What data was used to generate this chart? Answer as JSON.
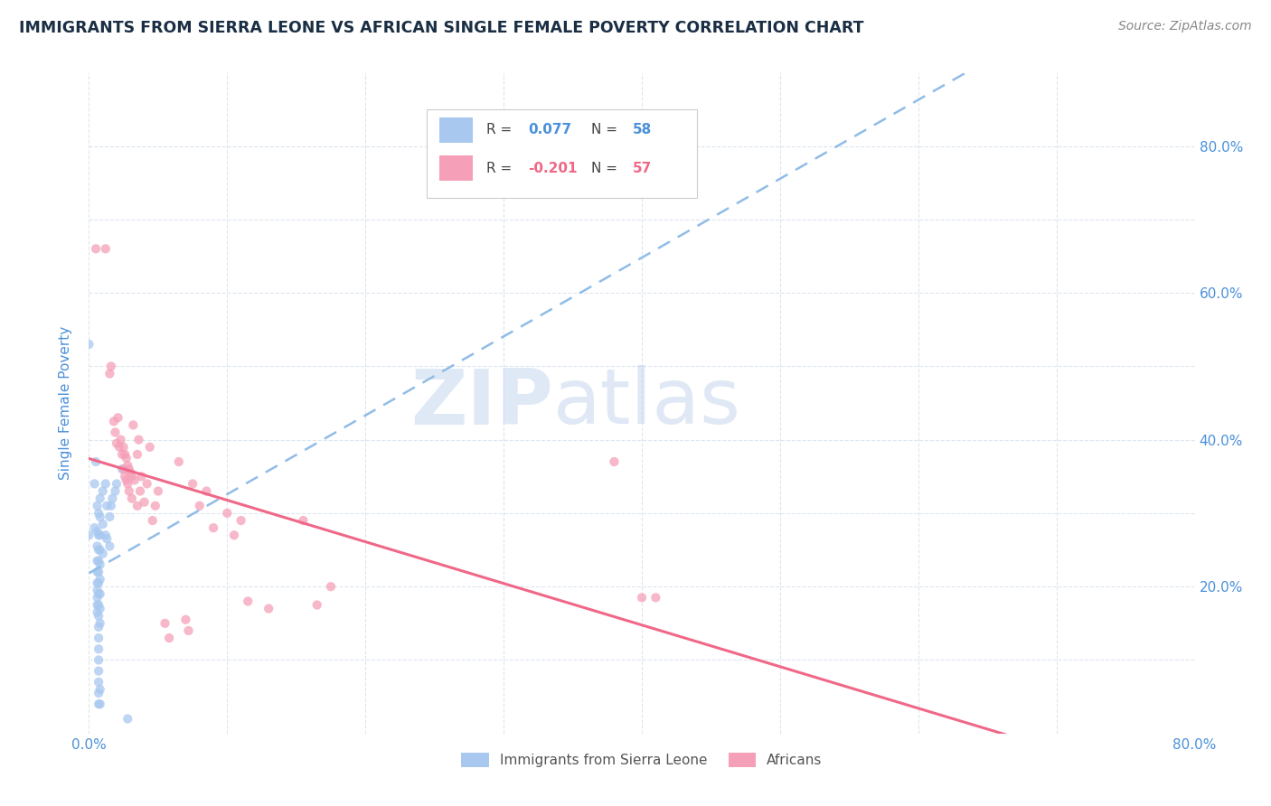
{
  "title": "IMMIGRANTS FROM SIERRA LEONE VS AFRICAN SINGLE FEMALE POVERTY CORRELATION CHART",
  "source": "Source: ZipAtlas.com",
  "ylabel": "Single Female Poverty",
  "legend_bottom": [
    "Immigrants from Sierra Leone",
    "Africans"
  ],
  "r_blue": 0.077,
  "n_blue": 58,
  "r_pink": -0.201,
  "n_pink": 57,
  "watermark_zip": "ZIP",
  "watermark_atlas": "atlas",
  "title_color": "#1a2e44",
  "source_color": "#888888",
  "axis_tick_color": "#4a90d9",
  "ylabel_color": "#4a90d9",
  "blue_scatter_color": "#a8c8f0",
  "pink_scatter_color": "#f5a0b8",
  "blue_line_color": "#90bce8",
  "pink_line_color": "#f06888",
  "background_color": "#ffffff",
  "grid_color": "#dce6f0",
  "scatter_size": 55,
  "scatter_alpha": 0.75,
  "blue_points": [
    [
      0.0,
      0.53
    ],
    [
      0.0,
      0.27
    ],
    [
      0.004,
      0.34
    ],
    [
      0.004,
      0.28
    ],
    [
      0.005,
      0.37
    ],
    [
      0.006,
      0.31
    ],
    [
      0.006,
      0.275
    ],
    [
      0.006,
      0.255
    ],
    [
      0.006,
      0.235
    ],
    [
      0.006,
      0.22
    ],
    [
      0.006,
      0.205
    ],
    [
      0.006,
      0.195
    ],
    [
      0.006,
      0.185
    ],
    [
      0.006,
      0.175
    ],
    [
      0.006,
      0.165
    ],
    [
      0.007,
      0.3
    ],
    [
      0.007,
      0.27
    ],
    [
      0.007,
      0.25
    ],
    [
      0.007,
      0.235
    ],
    [
      0.007,
      0.22
    ],
    [
      0.007,
      0.205
    ],
    [
      0.007,
      0.19
    ],
    [
      0.007,
      0.175
    ],
    [
      0.007,
      0.16
    ],
    [
      0.007,
      0.145
    ],
    [
      0.007,
      0.13
    ],
    [
      0.007,
      0.115
    ],
    [
      0.007,
      0.1
    ],
    [
      0.007,
      0.085
    ],
    [
      0.007,
      0.07
    ],
    [
      0.007,
      0.055
    ],
    [
      0.007,
      0.04
    ],
    [
      0.008,
      0.32
    ],
    [
      0.008,
      0.295
    ],
    [
      0.008,
      0.27
    ],
    [
      0.008,
      0.25
    ],
    [
      0.008,
      0.23
    ],
    [
      0.008,
      0.21
    ],
    [
      0.008,
      0.19
    ],
    [
      0.008,
      0.17
    ],
    [
      0.008,
      0.15
    ],
    [
      0.008,
      0.06
    ],
    [
      0.008,
      0.04
    ],
    [
      0.01,
      0.33
    ],
    [
      0.01,
      0.285
    ],
    [
      0.01,
      0.245
    ],
    [
      0.012,
      0.34
    ],
    [
      0.012,
      0.27
    ],
    [
      0.013,
      0.31
    ],
    [
      0.013,
      0.265
    ],
    [
      0.015,
      0.295
    ],
    [
      0.015,
      0.255
    ],
    [
      0.016,
      0.31
    ],
    [
      0.017,
      0.32
    ],
    [
      0.019,
      0.33
    ],
    [
      0.02,
      0.34
    ],
    [
      0.024,
      0.36
    ],
    [
      0.028,
      0.02
    ]
  ],
  "pink_points": [
    [
      0.005,
      0.66
    ],
    [
      0.012,
      0.66
    ],
    [
      0.015,
      0.49
    ],
    [
      0.016,
      0.5
    ],
    [
      0.018,
      0.425
    ],
    [
      0.019,
      0.41
    ],
    [
      0.02,
      0.395
    ],
    [
      0.021,
      0.43
    ],
    [
      0.022,
      0.39
    ],
    [
      0.023,
      0.4
    ],
    [
      0.024,
      0.38
    ],
    [
      0.025,
      0.39
    ],
    [
      0.025,
      0.36
    ],
    [
      0.026,
      0.38
    ],
    [
      0.026,
      0.35
    ],
    [
      0.027,
      0.375
    ],
    [
      0.027,
      0.345
    ],
    [
      0.028,
      0.365
    ],
    [
      0.028,
      0.34
    ],
    [
      0.029,
      0.36
    ],
    [
      0.029,
      0.33
    ],
    [
      0.03,
      0.355
    ],
    [
      0.031,
      0.35
    ],
    [
      0.031,
      0.32
    ],
    [
      0.032,
      0.42
    ],
    [
      0.033,
      0.345
    ],
    [
      0.035,
      0.38
    ],
    [
      0.035,
      0.31
    ],
    [
      0.036,
      0.4
    ],
    [
      0.037,
      0.33
    ],
    [
      0.038,
      0.35
    ],
    [
      0.04,
      0.315
    ],
    [
      0.042,
      0.34
    ],
    [
      0.044,
      0.39
    ],
    [
      0.046,
      0.29
    ],
    [
      0.048,
      0.31
    ],
    [
      0.05,
      0.33
    ],
    [
      0.055,
      0.15
    ],
    [
      0.058,
      0.13
    ],
    [
      0.065,
      0.37
    ],
    [
      0.07,
      0.155
    ],
    [
      0.072,
      0.14
    ],
    [
      0.075,
      0.34
    ],
    [
      0.08,
      0.31
    ],
    [
      0.085,
      0.33
    ],
    [
      0.09,
      0.28
    ],
    [
      0.1,
      0.3
    ],
    [
      0.105,
      0.27
    ],
    [
      0.11,
      0.29
    ],
    [
      0.115,
      0.18
    ],
    [
      0.13,
      0.17
    ],
    [
      0.155,
      0.29
    ],
    [
      0.165,
      0.175
    ],
    [
      0.175,
      0.2
    ],
    [
      0.38,
      0.37
    ],
    [
      0.4,
      0.185
    ],
    [
      0.41,
      0.185
    ]
  ],
  "xlim": [
    0.0,
    0.8
  ],
  "ylim": [
    0.0,
    0.9
  ],
  "xticks": [
    0.0,
    0.2,
    0.4,
    0.6,
    0.8
  ],
  "yticks": [
    0.0,
    0.2,
    0.4,
    0.6,
    0.8
  ],
  "grid_yticks": [
    0.0,
    0.1,
    0.2,
    0.3,
    0.4,
    0.5,
    0.6,
    0.7,
    0.8
  ],
  "grid_xticks": [
    0.0,
    0.1,
    0.2,
    0.3,
    0.4,
    0.5,
    0.6,
    0.7,
    0.8
  ]
}
